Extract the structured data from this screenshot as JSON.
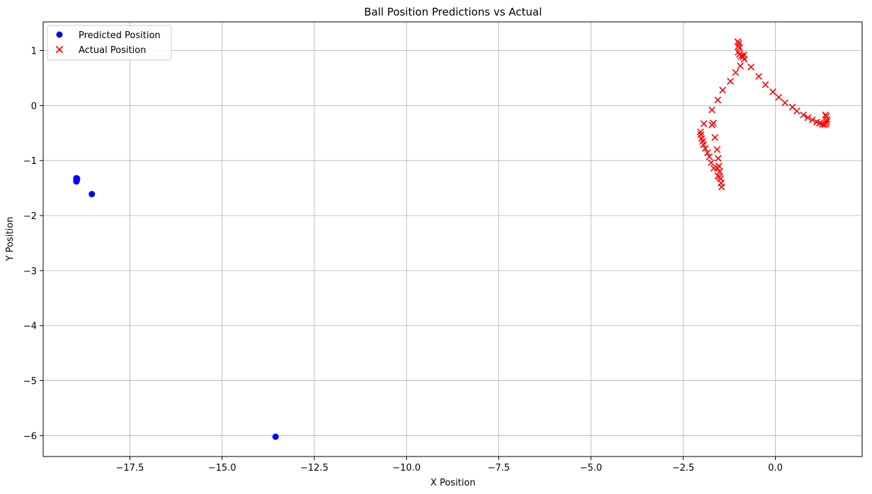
{
  "chart_data": {
    "type": "scatter",
    "title": "Ball Position Predictions vs Actual",
    "xlabel": "X Position",
    "ylabel": "Y Position",
    "xlim": [
      -19.85,
      2.35
    ],
    "ylim": [
      -6.38,
      1.52
    ],
    "xticks": [
      -17.5,
      -15.0,
      -12.5,
      -10.0,
      -7.5,
      -5.0,
      -2.5,
      0.0
    ],
    "xtick_labels": [
      "−17.5",
      "−15.0",
      "−12.5",
      "−10.0",
      "−7.5",
      "−5.0",
      "−2.5",
      "0.0"
    ],
    "yticks": [
      1,
      0,
      -1,
      -2,
      -3,
      -4,
      -5,
      -6
    ],
    "ytick_labels": [
      "1",
      "0",
      "−1",
      "−2",
      "−3",
      "−4",
      "−5",
      "−6"
    ],
    "grid": true,
    "legend_position": "top-left",
    "series": [
      {
        "name": "Predicted Position",
        "marker": "circle",
        "color": "#0000ff",
        "points": [
          [
            -18.95,
            -1.32
          ],
          [
            -18.94,
            -1.34
          ],
          [
            -18.95,
            -1.35
          ],
          [
            -18.94,
            -1.36
          ],
          [
            -18.95,
            -1.38
          ],
          [
            -18.93,
            -1.33
          ],
          [
            -18.53,
            -1.61
          ],
          [
            -13.55,
            -6.02
          ]
        ]
      },
      {
        "name": "Actual Position",
        "marker": "x",
        "color": "#ff0000",
        "points": [
          [
            -1.02,
            1.16
          ],
          [
            -0.99,
            1.13
          ],
          [
            -1.0,
            1.08
          ],
          [
            -0.97,
            1.05
          ],
          [
            -1.01,
            0.97
          ],
          [
            -0.97,
            0.93
          ],
          [
            -0.93,
            0.9
          ],
          [
            -0.88,
            0.88
          ],
          [
            -0.84,
            0.84
          ],
          [
            -0.86,
            0.92
          ],
          [
            -0.95,
            0.72
          ],
          [
            -0.66,
            0.7
          ],
          [
            -0.45,
            0.53
          ],
          [
            -0.27,
            0.38
          ],
          [
            -0.07,
            0.25
          ],
          [
            0.09,
            0.15
          ],
          [
            0.26,
            0.05
          ],
          [
            0.46,
            -0.03
          ],
          [
            0.58,
            -0.1
          ],
          [
            0.76,
            -0.17
          ],
          [
            0.88,
            -0.22
          ],
          [
            1.0,
            -0.26
          ],
          [
            1.12,
            -0.3
          ],
          [
            1.2,
            -0.32
          ],
          [
            1.27,
            -0.34
          ],
          [
            1.33,
            -0.35
          ],
          [
            1.37,
            -0.33
          ],
          [
            1.39,
            -0.3
          ],
          [
            1.4,
            -0.26
          ],
          [
            1.38,
            -0.2
          ],
          [
            1.36,
            -0.17
          ],
          [
            -1.08,
            0.6
          ],
          [
            -1.22,
            0.44
          ],
          [
            -1.43,
            0.28
          ],
          [
            -1.56,
            0.1
          ],
          [
            -1.72,
            -0.08
          ],
          [
            -1.68,
            -0.32
          ],
          [
            -1.72,
            -0.35
          ],
          [
            -1.64,
            -0.58
          ],
          [
            -1.58,
            -0.8
          ],
          [
            -1.55,
            -0.96
          ],
          [
            -1.53,
            -1.1
          ],
          [
            -1.57,
            -1.14
          ],
          [
            -1.51,
            -1.2
          ],
          [
            -1.56,
            -1.28
          ],
          [
            -1.49,
            -1.33
          ],
          [
            -1.47,
            -1.41
          ],
          [
            -1.46,
            -1.48
          ],
          [
            -1.52,
            -1.3
          ],
          [
            -1.67,
            -1.14
          ],
          [
            -1.74,
            -1.04
          ],
          [
            -1.79,
            -0.93
          ],
          [
            -1.84,
            -0.86
          ],
          [
            -1.9,
            -0.78
          ],
          [
            -1.95,
            -0.71
          ],
          [
            -1.97,
            -0.65
          ],
          [
            -2.0,
            -0.6
          ],
          [
            -2.02,
            -0.53
          ],
          [
            -2.03,
            -0.48
          ],
          [
            -1.94,
            -0.33
          ]
        ]
      }
    ]
  }
}
